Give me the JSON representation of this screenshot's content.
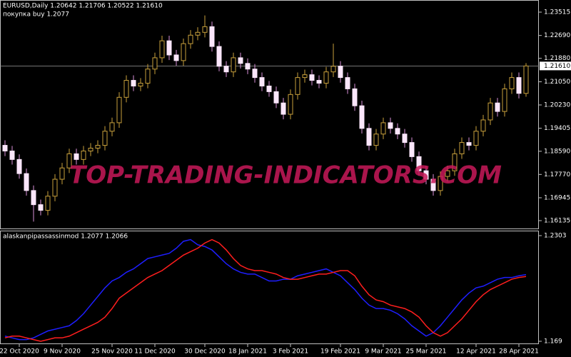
{
  "chart_data": [
    {
      "type": "candlestick",
      "title": "EURUSD,Daily  1.20642 1.21706 1.20522 1.21610",
      "subtitle": "покупка buy 1.2077",
      "watermark": "TOP-TRADING-INDICATORS.COM",
      "up_color": "#c8a03c",
      "down_color": "#fbe6fb",
      "down_wick_color": "#d98fd9",
      "open": [
        1.188,
        1.186,
        1.183,
        1.178,
        1.172,
        1.167,
        1.165,
        1.17,
        1.176,
        1.18,
        1.185,
        1.183,
        1.186,
        1.187,
        1.188,
        1.193,
        1.196,
        1.205,
        1.211,
        1.209,
        1.21,
        1.215,
        1.219,
        1.225,
        1.22,
        1.218,
        1.224,
        1.227,
        1.228,
        1.23,
        1.223,
        1.216,
        1.214,
        1.219,
        1.217,
        1.215,
        1.212,
        1.209,
        1.207,
        1.203,
        1.199,
        1.206,
        1.212,
        1.213,
        1.211,
        1.21,
        1.214,
        1.216,
        1.212,
        1.208,
        1.202,
        1.194,
        1.188,
        1.192,
        1.196,
        1.194,
        1.192,
        1.189,
        1.184,
        1.179,
        1.176,
        1.172,
        1.177,
        1.179,
        1.185,
        1.189,
        1.188,
        1.193,
        1.197,
        1.203,
        1.2,
        1.208,
        1.212,
        1.2064
      ],
      "high": [
        1.1898,
        1.1878,
        1.1848,
        1.1798,
        1.1738,
        1.1688,
        1.1718,
        1.1778,
        1.1818,
        1.1868,
        1.1868,
        1.1878,
        1.1888,
        1.1898,
        1.1948,
        1.1978,
        1.2068,
        1.2128,
        1.2128,
        1.2118,
        1.2168,
        1.2208,
        1.2268,
        1.2268,
        1.2218,
        1.2258,
        1.2288,
        1.2298,
        1.234,
        1.2318,
        1.2248,
        1.2178,
        1.2208,
        1.2208,
        1.2188,
        1.2168,
        1.2138,
        1.2108,
        1.2088,
        1.2048,
        1.2078,
        1.2138,
        1.2148,
        1.2148,
        1.2128,
        1.2158,
        1.224,
        1.2178,
        1.2138,
        1.2098,
        1.2038,
        1.1958,
        1.1938,
        1.1978,
        1.1978,
        1.1958,
        1.1938,
        1.1908,
        1.1858,
        1.1808,
        1.1778,
        1.1788,
        1.1808,
        1.1868,
        1.1908,
        1.1908,
        1.1948,
        1.1988,
        1.2048,
        1.2048,
        1.2098,
        1.2138,
        1.2138,
        1.2171
      ],
      "low": [
        1.1842,
        1.1812,
        1.1762,
        1.1702,
        1.161,
        1.1632,
        1.1632,
        1.1682,
        1.1742,
        1.1782,
        1.1812,
        1.1812,
        1.1842,
        1.1852,
        1.1862,
        1.1912,
        1.1942,
        1.2032,
        1.2072,
        1.2072,
        1.2082,
        1.2132,
        1.2172,
        1.2182,
        1.2162,
        1.2162,
        1.2222,
        1.2252,
        1.2262,
        1.2212,
        1.2142,
        1.2122,
        1.2122,
        1.2152,
        1.2132,
        1.2102,
        1.2072,
        1.2052,
        1.2012,
        1.1972,
        1.1972,
        1.2042,
        1.2102,
        1.2092,
        1.2082,
        1.2082,
        1.2122,
        1.2102,
        1.2062,
        1.2002,
        1.1922,
        1.1862,
        1.1862,
        1.1902,
        1.1922,
        1.1902,
        1.1872,
        1.1822,
        1.1772,
        1.1742,
        1.1702,
        1.1702,
        1.1752,
        1.1772,
        1.1832,
        1.1862,
        1.1862,
        1.1912,
        1.1952,
        1.1982,
        1.1982,
        1.2062,
        1.2046,
        1.2052
      ],
      "close": [
        1.186,
        1.183,
        1.178,
        1.172,
        1.167,
        1.165,
        1.17,
        1.176,
        1.18,
        1.185,
        1.183,
        1.186,
        1.187,
        1.188,
        1.193,
        1.196,
        1.205,
        1.211,
        1.209,
        1.21,
        1.215,
        1.219,
        1.225,
        1.22,
        1.218,
        1.224,
        1.227,
        1.228,
        1.23,
        1.223,
        1.216,
        1.214,
        1.219,
        1.217,
        1.215,
        1.212,
        1.209,
        1.207,
        1.203,
        1.199,
        1.206,
        1.212,
        1.213,
        1.211,
        1.21,
        1.214,
        1.216,
        1.212,
        1.208,
        1.202,
        1.194,
        1.188,
        1.192,
        1.196,
        1.194,
        1.192,
        1.189,
        1.184,
        1.179,
        1.176,
        1.172,
        1.177,
        1.179,
        1.185,
        1.189,
        1.188,
        1.193,
        1.197,
        1.203,
        1.2,
        1.208,
        1.212,
        1.2064,
        1.2161
      ],
      "last_price": {
        "value": 1.2161,
        "label": "1.21610"
      },
      "ylim": [
        1.15857,
        1.23945
      ],
      "yticks": [
        1.23515,
        {
          "value": 1.2269,
          "label": "1.22690"
        },
        {
          "value": 1.2188,
          "label": "1.21880"
        },
        {
          "value": 1.2105,
          "label": "1.21050"
        },
        {
          "value": 1.2023,
          "label": "1.20230"
        },
        1.19405,
        {
          "value": 1.1859,
          "label": "1.18590"
        },
        {
          "value": 1.1777,
          "label": "1.17770"
        },
        1.16945,
        1.16135
      ]
    },
    {
      "type": "line",
      "title": "alaskanpipassassinmod 1.2077 1.2066",
      "categories": [
        null,
        null,
        "22 Oct 2020",
        null,
        null,
        null,
        null,
        null,
        "9 Nov 2020",
        null,
        null,
        null,
        null,
        null,
        null,
        "25 Nov 2020",
        null,
        null,
        null,
        null,
        null,
        "11 Dec 2020",
        null,
        null,
        null,
        null,
        null,
        null,
        "30 Dec 2020",
        null,
        null,
        null,
        null,
        null,
        "18 Jan 2021",
        null,
        null,
        null,
        null,
        null,
        "3 Feb 2021",
        null,
        null,
        null,
        null,
        null,
        null,
        "19 Feb 2021",
        null,
        null,
        null,
        null,
        null,
        "9 Mar 2021",
        null,
        null,
        null,
        null,
        null,
        "25 Mar 2021",
        null,
        null,
        null,
        null,
        null,
        null,
        "12 Apr 2021",
        null,
        null,
        null,
        null,
        null,
        "28 Apr 2021",
        null
      ],
      "series": [
        {
          "name": null,
          "color": "#1e1eff",
          "values": [
            1.172,
            1.171,
            1.17,
            1.17,
            1.171,
            1.173,
            1.175,
            1.176,
            1.177,
            1.178,
            1.181,
            1.185,
            1.19,
            1.195,
            1.2,
            1.204,
            1.206,
            1.209,
            1.211,
            1.214,
            1.217,
            1.218,
            1.219,
            1.22,
            1.223,
            1.227,
            1.228,
            1.225,
            1.224,
            1.222,
            1.218,
            1.214,
            1.211,
            1.209,
            1.208,
            1.208,
            1.206,
            1.204,
            1.204,
            1.205,
            1.205,
            1.207,
            1.208,
            1.209,
            1.21,
            1.211,
            1.209,
            1.207,
            1.203,
            1.199,
            1.194,
            1.19,
            1.188,
            1.188,
            1.187,
            1.185,
            1.182,
            1.178,
            1.175,
            1.172,
            1.174,
            1.178,
            1.183,
            1.188,
            1.193,
            1.197,
            1.2,
            1.201,
            1.203,
            1.205,
            1.206,
            1.206,
            1.207,
            1.2077
          ]
        },
        {
          "name": null,
          "color": "#ff1e1e",
          "values": [
            1.171,
            1.172,
            1.172,
            1.171,
            1.17,
            1.169,
            1.17,
            1.171,
            1.171,
            1.172,
            1.174,
            1.176,
            1.178,
            1.18,
            1.183,
            1.188,
            1.194,
            1.197,
            1.2,
            1.203,
            1.206,
            1.208,
            1.21,
            1.213,
            1.216,
            1.219,
            1.221,
            1.223,
            1.226,
            1.228,
            1.226,
            1.222,
            1.217,
            1.213,
            1.211,
            1.21,
            1.21,
            1.209,
            1.208,
            1.206,
            1.205,
            1.205,
            1.206,
            1.207,
            1.208,
            1.208,
            1.209,
            1.21,
            1.21,
            1.207,
            1.201,
            1.196,
            1.193,
            1.192,
            1.19,
            1.189,
            1.188,
            1.186,
            1.183,
            1.178,
            1.174,
            1.172,
            1.174,
            1.178,
            1.182,
            1.187,
            1.192,
            1.196,
            1.199,
            1.201,
            1.203,
            1.205,
            1.206,
            1.2066
          ]
        }
      ],
      "ylim": [
        1.169,
        1.2303
      ],
      "yticks": [
        1.2303,
        1.169
      ]
    }
  ]
}
